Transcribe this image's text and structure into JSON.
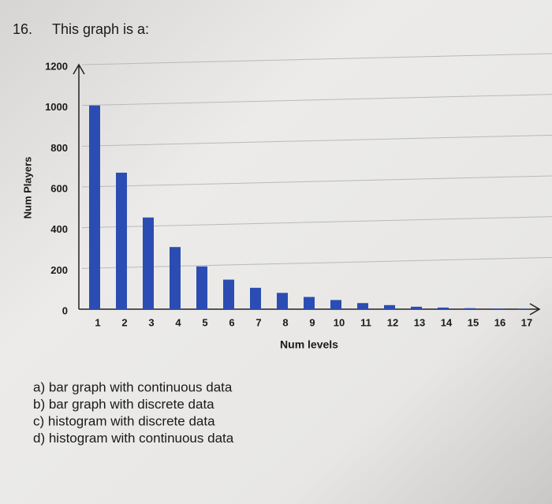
{
  "question": {
    "number": "16.",
    "text": "This graph is a:",
    "options": [
      "a) bar graph with continuous data",
      "b) bar graph with discrete data",
      "c) histogram with discrete data",
      "d) histogram with continuous data"
    ]
  },
  "chart_data": {
    "type": "bar",
    "x_label": "Num levels",
    "y_label": "Num Players",
    "categories": [
      "1",
      "2",
      "3",
      "4",
      "5",
      "6",
      "7",
      "8",
      "9",
      "10",
      "11",
      "12",
      "13",
      "14",
      "15",
      "16",
      "17"
    ],
    "values": [
      1000,
      670,
      450,
      305,
      210,
      145,
      105,
      80,
      60,
      45,
      30,
      20,
      12,
      8,
      5,
      3,
      2
    ],
    "color": "#2b4db3",
    "ylim": [
      0,
      1200
    ],
    "yticks": [
      0,
      200,
      400,
      600,
      800,
      1000,
      1200
    ],
    "grid": true
  }
}
